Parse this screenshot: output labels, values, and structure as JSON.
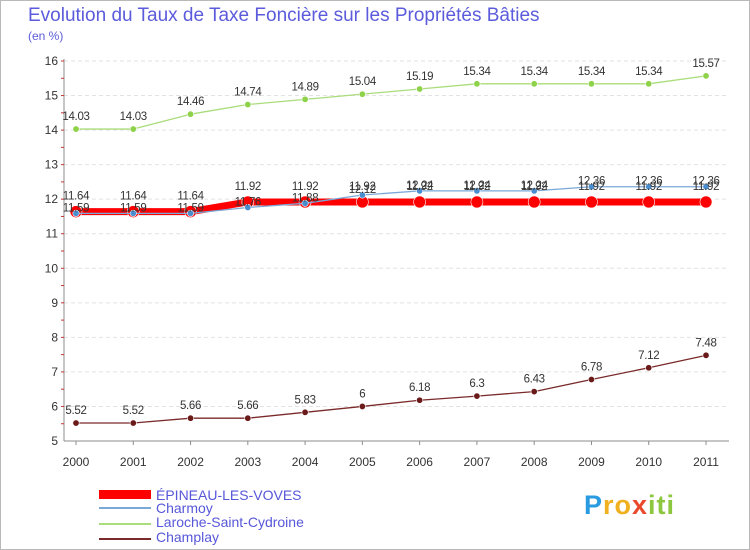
{
  "chart_data": {
    "type": "line",
    "title": "Evolution du Taux de Taxe Foncière sur les Propriétés Bâties",
    "ylabel": "(en %)",
    "xlabel": "",
    "ylim": [
      5,
      16
    ],
    "yticks": [
      "5",
      "6",
      "7",
      "8",
      "9",
      "10",
      "11",
      "12",
      "13",
      "14",
      "15",
      "16"
    ],
    "x": [
      "2000",
      "2001",
      "2002",
      "2003",
      "2004",
      "2005",
      "2006",
      "2007",
      "2008",
      "2009",
      "2010",
      "2011"
    ],
    "series": [
      {
        "name": "Laroche-Saint-Cydroine",
        "color": "#8ed24a",
        "line": "#a9dc7a",
        "width": 1.3,
        "marker": 3.2,
        "values": [
          14.03,
          14.03,
          14.46,
          14.74,
          14.89,
          15.04,
          15.19,
          15.34,
          15.34,
          15.34,
          15.34,
          15.57
        ],
        "labels": [
          "14.03",
          "14.03",
          "14.46",
          "14.74",
          "14.89",
          "15.04",
          "15.19",
          "15.34",
          "15.34",
          "15.34",
          "15.34",
          "15.57"
        ]
      },
      {
        "name": "Champlay",
        "color": "#6b1a1a",
        "line": "#7a2a2a",
        "width": 1.3,
        "marker": 3.2,
        "values": [
          5.52,
          5.52,
          5.66,
          5.66,
          5.83,
          6,
          6.18,
          6.3,
          6.43,
          6.78,
          7.12,
          7.48
        ],
        "labels": [
          "5.52",
          "5.52",
          "5.66",
          "5.66",
          "5.83",
          "6",
          "6.18",
          "6.3",
          "6.43",
          "6.78",
          "7.12",
          "7.48"
        ]
      },
      {
        "name": "ÉPINEAU-LES-VOVES",
        "color": "#ff0000",
        "line": "#ff0000",
        "width": 7,
        "marker": 6,
        "values": [
          11.64,
          11.64,
          11.64,
          11.92,
          11.92,
          11.92,
          11.92,
          11.92,
          11.92,
          11.92,
          11.92,
          11.92
        ],
        "labels": [
          "11.64",
          "11.64",
          "11.64",
          "11.92",
          "11.92",
          "11.92",
          "11.92",
          "11.92",
          "11.92",
          "11.92",
          "11.92",
          "11.92"
        ]
      },
      {
        "name": "Charmoy",
        "color": "#4a8ed0",
        "line": "#7aa8d8",
        "width": 1.3,
        "marker": 3.2,
        "values": [
          11.59,
          11.59,
          11.59,
          11.76,
          11.88,
          12.12,
          12.24,
          12.24,
          12.24,
          12.36,
          12.36,
          12.36
        ],
        "labels": [
          "11.59",
          "11.59",
          "11.59",
          "11.76",
          "11.88",
          "12.12",
          "12.24",
          "12.24",
          "12.24",
          "12.36",
          "12.36",
          "12.36"
        ]
      }
    ],
    "legend": [
      {
        "name": "ÉPINEAU-LES-VOVES",
        "color": "#ff0000"
      },
      {
        "name": "Charmoy",
        "color": "#7aa8d8"
      },
      {
        "name": "Laroche-Saint-Cydroine",
        "color": "#a9dc7a"
      },
      {
        "name": "Champlay",
        "color": "#7a2a2a"
      }
    ]
  },
  "brand": {
    "p1": "P",
    "p2": "ro",
    "p3": "x",
    "p4": "iti"
  }
}
